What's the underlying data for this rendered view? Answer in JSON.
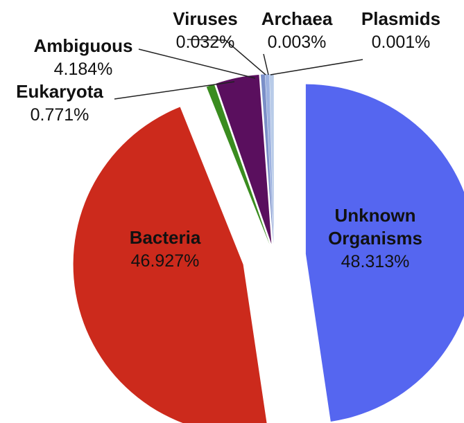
{
  "chart_data": {
    "type": "pie",
    "title": "",
    "slices": [
      {
        "label": "Unknown Organisms",
        "label_lines": [
          "Unknown",
          "Organisms"
        ],
        "value": 48.313,
        "value_text": "48.313%",
        "color": "#5566f0"
      },
      {
        "label": "Bacteria",
        "label_lines": [
          "Bacteria"
        ],
        "value": 46.927,
        "value_text": "46.927%",
        "color": "#cc2a1c"
      },
      {
        "label": "Eukaryota",
        "label_lines": [
          "Eukaryota"
        ],
        "value": 0.771,
        "value_text": "0.771%",
        "color": "#3a8c1f"
      },
      {
        "label": "Ambiguous",
        "label_lines": [
          "Ambiguous"
        ],
        "value": 4.184,
        "value_text": "4.184%",
        "color": "#5a0f5e"
      },
      {
        "label": "Viruses",
        "label_lines": [
          "Viruses"
        ],
        "value": 0.032,
        "value_text": "0.032%",
        "color": "#7a8fc8"
      },
      {
        "label": "Archaea",
        "label_lines": [
          "Archaea"
        ],
        "value": 0.003,
        "value_text": "0.003%",
        "color": "#9db2e0"
      },
      {
        "label": "Plasmids",
        "label_lines": [
          "Plasmids"
        ],
        "value": 0.001,
        "value_text": "0.001%",
        "color": "#b8cbe8"
      }
    ],
    "exploded": true,
    "legend": "none"
  }
}
